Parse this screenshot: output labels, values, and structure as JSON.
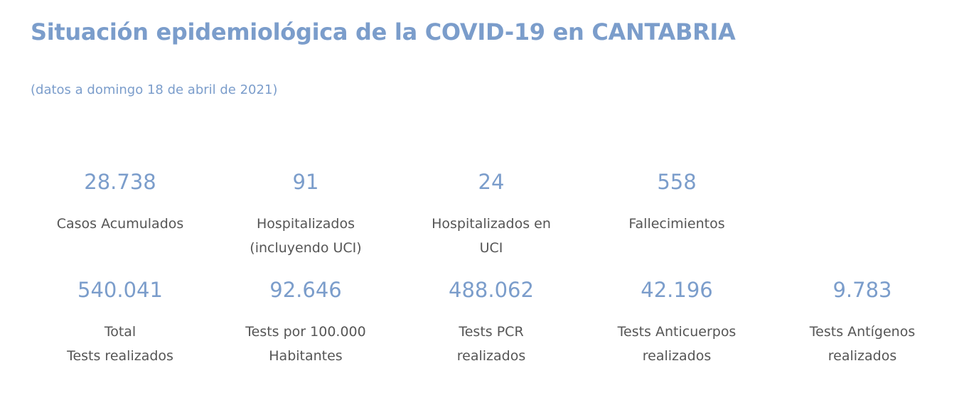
{
  "header": {
    "title": "Situación epidemiológica de la COVID-19 en CANTABRIA",
    "subtitle": "(datos a domingo 18 de abril de 2021)"
  },
  "colors": {
    "accent": "#7b9dcb",
    "label": "#555555"
  },
  "row1": [
    {
      "value": "28.738",
      "label": "Casos Acumulados"
    },
    {
      "value": "91",
      "label": "Hospitalizados\n(incluyendo UCI)"
    },
    {
      "value": "24",
      "label": "Hospitalizados en\nUCI"
    },
    {
      "value": "558",
      "label": "Fallecimientos"
    }
  ],
  "row2": [
    {
      "value": "540.041",
      "label": "Total\nTests realizados"
    },
    {
      "value": "92.646",
      "label": "Tests por 100.000\nHabitantes"
    },
    {
      "value": "488.062",
      "label": "Tests PCR\nrealizados"
    },
    {
      "value": "42.196",
      "label": "Tests Anticuerpos\nrealizados"
    },
    {
      "value": "9.783",
      "label": "Tests Antígenos\nrealizados"
    }
  ]
}
